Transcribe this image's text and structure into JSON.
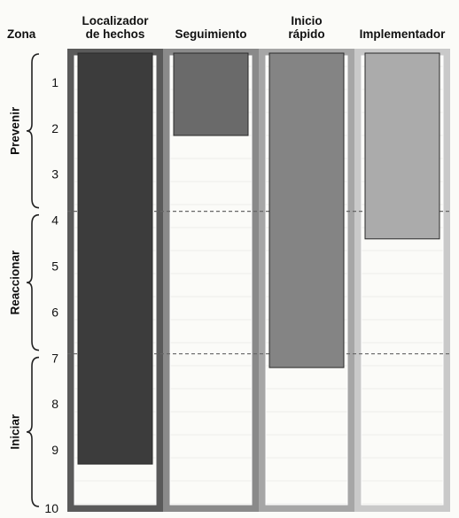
{
  "chart_data": {
    "type": "bar",
    "title": "",
    "y_axis_title": "Zona",
    "y_ticks": [
      "1",
      "2",
      "3",
      "4",
      "5",
      "6",
      "7",
      "8",
      "9",
      "10"
    ],
    "ylim": [
      0,
      10
    ],
    "y_direction": "downward",
    "categories": [
      {
        "lines": [
          "Localizador",
          "de hechos"
        ]
      },
      {
        "lines": [
          "Seguimiento"
        ]
      },
      {
        "lines": [
          "Inicio",
          "rápido"
        ]
      },
      {
        "lines": [
          "Implementador"
        ]
      }
    ],
    "values": [
      9.0,
      1.85,
      6.9,
      4.1
    ],
    "bar_colors": [
      "#3c3c3c",
      "#6a6a6a",
      "#848484",
      "#ababab"
    ],
    "column_frame_colors": [
      "#5a5a5a",
      "#8a8a8a",
      "#a6a6a6",
      "#c9c9c9"
    ],
    "zones": [
      {
        "label": "Prevenir",
        "from": 0,
        "to": 3.5
      },
      {
        "label": "Reaccionar",
        "from": 3.5,
        "to": 6.6
      },
      {
        "label": "Iniciar",
        "from": 6.6,
        "to": 10
      }
    ],
    "zone_dividers": [
      3.5,
      6.6
    ]
  }
}
